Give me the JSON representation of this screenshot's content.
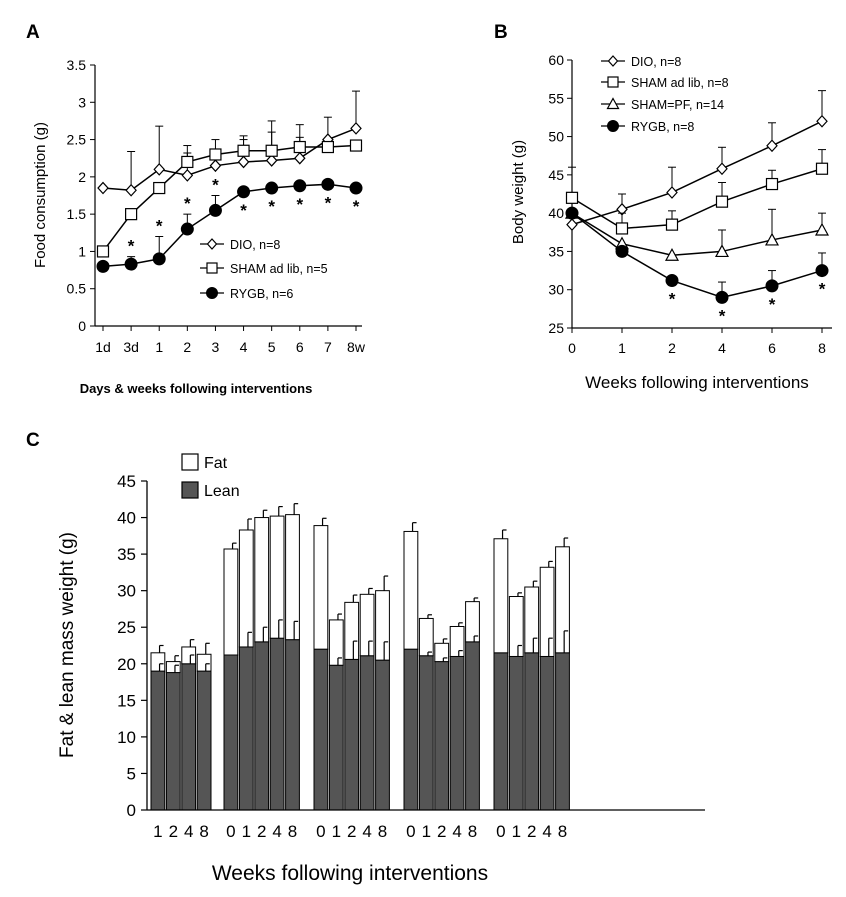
{
  "panels": [
    {
      "key": "A",
      "label": "A"
    },
    {
      "key": "B",
      "label": "B"
    },
    {
      "key": "C",
      "label": "C"
    }
  ],
  "chart_data": [
    {
      "panel": "A",
      "type": "line",
      "xlabel": "Days & weeks following interventions",
      "ylabel": "Food consumption (g)",
      "categories": [
        "1d",
        "3d",
        "1",
        "2",
        "3",
        "4",
        "5",
        "6",
        "7",
        "8w"
      ],
      "ylim": [
        0,
        3.5
      ],
      "yticks": [
        "0",
        "0.5",
        "1",
        "1.5",
        "2",
        "2.5",
        "3",
        "3.5"
      ],
      "legend_position": "lower-right",
      "series": [
        {
          "name": "DIO, n=8",
          "marker": "diamond",
          "values": [
            1.85,
            1.82,
            2.1,
            2.02,
            2.15,
            2.2,
            2.22,
            2.25,
            2.5,
            2.65
          ],
          "error": [
            0,
            0.52,
            0.58,
            0.3,
            0.35,
            0.3,
            0.38,
            0.28,
            0.3,
            0.5
          ]
        },
        {
          "name": "SHAM ad lib, n=5",
          "marker": "square",
          "values": [
            1.0,
            1.5,
            1.85,
            2.2,
            2.3,
            2.35,
            2.35,
            2.4,
            2.4,
            2.42
          ],
          "error": [
            0,
            0,
            0,
            0.22,
            0,
            0.2,
            0.4,
            0.3,
            0,
            0
          ]
        },
        {
          "name": "RYGB, n=6",
          "marker": "circle",
          "values": [
            0.8,
            0.83,
            0.9,
            1.3,
            1.55,
            1.8,
            1.85,
            1.88,
            1.9,
            1.85
          ],
          "error": [
            0,
            0.1,
            0.3,
            0.2,
            0.2,
            0,
            0,
            0,
            0,
            0
          ]
        }
      ],
      "significance_markers": [
        {
          "series": "RYGB, n=6",
          "index": 1,
          "text": "*"
        },
        {
          "series": "RYGB, n=6",
          "index": 2,
          "text": "*"
        },
        {
          "series": "RYGB, n=6",
          "index": 3,
          "text": "*"
        },
        {
          "series": "RYGB, n=6",
          "index": 4,
          "text": "*"
        },
        {
          "series": "RYGB, n=6",
          "index": 5,
          "text": "*"
        },
        {
          "series": "RYGB, n=6",
          "index": 6,
          "text": "*"
        },
        {
          "series": "RYGB, n=6",
          "index": 7,
          "text": "*"
        },
        {
          "series": "RYGB, n=6",
          "index": 8,
          "text": "*"
        },
        {
          "series": "RYGB, n=6",
          "index": 9,
          "text": "*"
        }
      ]
    },
    {
      "panel": "B",
      "type": "line",
      "xlabel": "Weeks following interventions",
      "ylabel": "Body weight (g)",
      "categories": [
        "0",
        "1",
        "2",
        "4",
        "6",
        "8"
      ],
      "ylim": [
        25,
        60
      ],
      "yticks": [
        "25",
        "30",
        "35",
        "40",
        "45",
        "50",
        "55",
        "60"
      ],
      "legend_position": "top-left",
      "series": [
        {
          "name": "DIO, n=8",
          "marker": "diamond",
          "values": [
            38.5,
            40.5,
            42.7,
            45.8,
            48.8,
            52.0
          ],
          "error": [
            0,
            2.0,
            3.3,
            2.8,
            3.0,
            4.0
          ]
        },
        {
          "name": "SHAM ad lib, n=8",
          "marker": "square",
          "values": [
            42.0,
            38.0,
            38.5,
            41.5,
            43.8,
            45.8
          ],
          "error": [
            4.0,
            2.0,
            1.8,
            2.5,
            1.8,
            2.5
          ]
        },
        {
          "name": "SHAM=PF, n=14",
          "marker": "triangle",
          "values": [
            40.0,
            36.0,
            34.5,
            35.0,
            36.5,
            37.8
          ],
          "error": [
            0,
            0,
            0,
            2.8,
            4.0,
            2.2
          ]
        },
        {
          "name": "RYGB, n=8",
          "marker": "circle",
          "values": [
            40.0,
            35.0,
            31.2,
            29.0,
            30.5,
            32.5
          ],
          "error": [
            0,
            0,
            0,
            2.0,
            2.0,
            2.3
          ]
        }
      ],
      "significance_markers": [
        {
          "series": "RYGB, n=8",
          "index": 2,
          "text": "*"
        },
        {
          "series": "RYGB, n=8",
          "index": 3,
          "text": "*"
        },
        {
          "series": "RYGB, n=8",
          "index": 4,
          "text": "*"
        },
        {
          "series": "RYGB, n=8",
          "index": 5,
          "text": "*"
        }
      ]
    },
    {
      "panel": "C",
      "type": "bar",
      "stacked": true,
      "xlabel": "Weeks following interventions",
      "ylabel": "Fat & lean mass weight (g)",
      "ylim": [
        0,
        45
      ],
      "yticks": [
        "0",
        "5",
        "10",
        "15",
        "20",
        "25",
        "30",
        "35",
        "40",
        "45"
      ],
      "legend_position": "top-left",
      "legend": [
        {
          "name": "Fat",
          "color": "#ffffff"
        },
        {
          "name": "Lean",
          "color": "#555555"
        }
      ],
      "groups": [
        {
          "categories": [
            "1",
            "2",
            "4",
            "8"
          ],
          "lean": [
            19.0,
            18.8,
            20.0,
            19.0
          ],
          "total": [
            21.5,
            20.3,
            22.3,
            21.3
          ],
          "error_total": [
            1.0,
            0.8,
            1.0,
            1.5
          ],
          "error_lean": [
            1.0,
            1.0,
            1.2,
            1.0
          ]
        },
        {
          "categories": [
            "0",
            "1",
            "2",
            "4",
            "8"
          ],
          "lean": [
            21.2,
            22.3,
            23.0,
            23.5,
            23.3
          ],
          "total": [
            35.7,
            38.3,
            40.0,
            40.2,
            40.4
          ],
          "error_total": [
            0.8,
            1.5,
            1.0,
            1.3,
            1.5
          ],
          "error_lean": [
            0,
            2.0,
            2.0,
            2.5,
            2.5
          ]
        },
        {
          "categories": [
            "0",
            "1",
            "2",
            "4",
            "8"
          ],
          "lean": [
            22.0,
            19.8,
            20.6,
            21.1,
            20.5
          ],
          "total": [
            38.9,
            26.0,
            28.4,
            29.5,
            30.0
          ],
          "error_total": [
            1.0,
            0.8,
            1.0,
            0.8,
            2.0
          ],
          "error_lean": [
            0,
            1.0,
            2.5,
            2.0,
            2.5
          ]
        },
        {
          "categories": [
            "0",
            "1",
            "2",
            "4",
            "8"
          ],
          "lean": [
            22.0,
            21.1,
            20.3,
            21.0,
            23.0
          ],
          "total": [
            38.1,
            26.2,
            22.8,
            25.1,
            28.5
          ],
          "error_total": [
            1.2,
            0.5,
            0.6,
            0.5,
            0.5
          ],
          "error_lean": [
            0,
            0.5,
            0.5,
            0.8,
            0.8
          ]
        },
        {
          "categories": [
            "0",
            "1",
            "2",
            "4",
            "8"
          ],
          "lean": [
            21.5,
            21.0,
            21.5,
            21.0,
            21.5
          ],
          "total": [
            37.1,
            29.2,
            30.5,
            33.2,
            36.0
          ],
          "error_total": [
            1.2,
            0.5,
            0.8,
            0.8,
            1.2
          ],
          "error_lean": [
            0,
            1.5,
            2.0,
            2.5,
            3.0
          ]
        }
      ]
    }
  ]
}
